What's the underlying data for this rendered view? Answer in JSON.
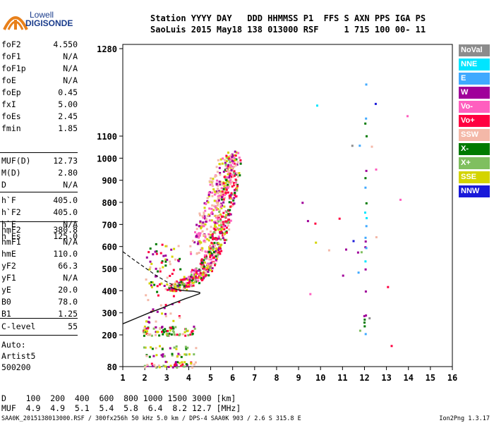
{
  "logo": {
    "line1": "Lowell",
    "line2": "DIGISONDE"
  },
  "header": {
    "row1": "Station YYYY DAY   DDD HHMMSS P1  FFS S AXN PPS IGA PS",
    "row2": "SaoLuis 2015 May18 138 013000 RSF     1 715 100 00- 11"
  },
  "params_1": [
    {
      "name": "foF2",
      "value": "4.550"
    },
    {
      "name": "foF1",
      "value": "N/A"
    },
    {
      "name": "foF1p",
      "value": "N/A"
    },
    {
      "name": "foE",
      "value": "N/A"
    },
    {
      "name": "foEp",
      "value": "0.45"
    },
    {
      "name": "fxI",
      "value": "5.00"
    },
    {
      "name": "foEs",
      "value": "2.45"
    },
    {
      "name": "fmin",
      "value": "1.85"
    }
  ],
  "params_2": [
    {
      "name": "MUF(D)",
      "value": "12.73"
    },
    {
      "name": "M(D)",
      "value": "2.80"
    },
    {
      "name": "D",
      "value": "N/A"
    }
  ],
  "params_3": [
    {
      "name": "h`F",
      "value": "405.0"
    },
    {
      "name": "h`F2",
      "value": "405.0"
    },
    {
      "name": "h`E",
      "value": "N/A"
    },
    {
      "name": "h`Es",
      "value": "125.0"
    }
  ],
  "params_4": [
    {
      "name": "hmF2",
      "value": "380.8"
    },
    {
      "name": "hmF1",
      "value": "N/A"
    },
    {
      "name": "hmE",
      "value": "110.0"
    },
    {
      "name": "yF2",
      "value": "66.3"
    },
    {
      "name": "yF1",
      "value": "N/A"
    },
    {
      "name": "yE",
      "value": "20.0"
    },
    {
      "name": "B0",
      "value": "78.0"
    },
    {
      "name": "B1",
      "value": "1.25"
    }
  ],
  "params_5": [
    {
      "name": "C-level",
      "value": "55"
    }
  ],
  "auto": {
    "line1": "Auto:",
    "line2": "Artist5",
    "line3": "500200"
  },
  "legend": [
    {
      "label": "NoVal",
      "color": "#8c8c8c"
    },
    {
      "label": "NNE",
      "color": "#00e5ff"
    },
    {
      "label": "E",
      "color": "#3fa9ff"
    },
    {
      "label": "W",
      "color": "#a0009a"
    },
    {
      "label": "Vo-",
      "color": "#ff5fbf"
    },
    {
      "label": "Vo+",
      "color": "#ff0040"
    },
    {
      "label": "SSW",
      "color": "#f4b8a8"
    },
    {
      "label": "X-",
      "color": "#007a00"
    },
    {
      "label": "X+",
      "color": "#7fbf5f"
    },
    {
      "label": "SSE",
      "color": "#d4d400"
    },
    {
      "label": "NNW",
      "color": "#1a1ad9"
    }
  ],
  "table": {
    "row1": "D    100  200  400  600  800 1000 1500 3000 [km]",
    "row2": "MUF  4.9  4.9  5.1  5.4  5.8  6.4  8.2 12.7 [MHz]"
  },
  "footer": {
    "left": "SAA0K_2015138013000.RSF / 300fx256h 50 kHz 5.0 km / DPS-4 SAA0K 903 / 2.6 S 315.8 E",
    "right": "Ion2Png 1.3.17"
  },
  "chart_data": {
    "type": "scatter",
    "x_ticks": [
      "1",
      "2",
      "3",
      "4",
      "5",
      "6",
      "7",
      "8",
      "9",
      "10",
      "11",
      "12",
      "13",
      "14",
      "15",
      "16"
    ],
    "y_ticks": [
      "80",
      "200",
      "300",
      "400",
      "500",
      "600",
      "700",
      "800",
      "900",
      "1000",
      "1100",
      "1280"
    ],
    "xlim": [
      1,
      16
    ],
    "ylim": [
      80,
      1280
    ],
    "profile_curve": [
      [
        1.0,
        250
      ],
      [
        1.6,
        275
      ],
      [
        2.2,
        300
      ],
      [
        2.8,
        322
      ],
      [
        3.3,
        343
      ],
      [
        3.8,
        362
      ],
      [
        4.2,
        376
      ],
      [
        4.5,
        387
      ],
      [
        4.5,
        392
      ],
      [
        4.2,
        398
      ],
      [
        3.8,
        400
      ],
      [
        3.5,
        404
      ],
      [
        3.2,
        415
      ]
    ],
    "dashed_curve": [
      [
        1.0,
        577
      ],
      [
        1.5,
        540
      ],
      [
        2.0,
        505
      ],
      [
        2.5,
        470
      ],
      [
        3.0,
        440
      ],
      [
        3.3,
        425
      ]
    ],
    "trace_F2": [
      [
        3.2,
        415
      ],
      [
        3.5,
        425
      ],
      [
        3.8,
        440
      ],
      [
        4.1,
        455
      ],
      [
        4.35,
        470
      ],
      [
        4.6,
        495
      ],
      [
        4.8,
        525
      ],
      [
        5.0,
        560
      ],
      [
        5.15,
        600
      ],
      [
        5.3,
        640
      ],
      [
        5.45,
        690
      ],
      [
        5.55,
        740
      ],
      [
        5.7,
        800
      ],
      [
        5.85,
        880
      ],
      [
        5.95,
        950
      ],
      [
        6.0,
        1000
      ]
    ],
    "trace_upper": [
      [
        4.4,
        600
      ],
      [
        4.6,
        650
      ],
      [
        4.8,
        710
      ],
      [
        5.0,
        770
      ],
      [
        5.2,
        830
      ],
      [
        5.4,
        890
      ],
      [
        5.6,
        950
      ],
      [
        5.8,
        1010
      ]
    ]
  }
}
